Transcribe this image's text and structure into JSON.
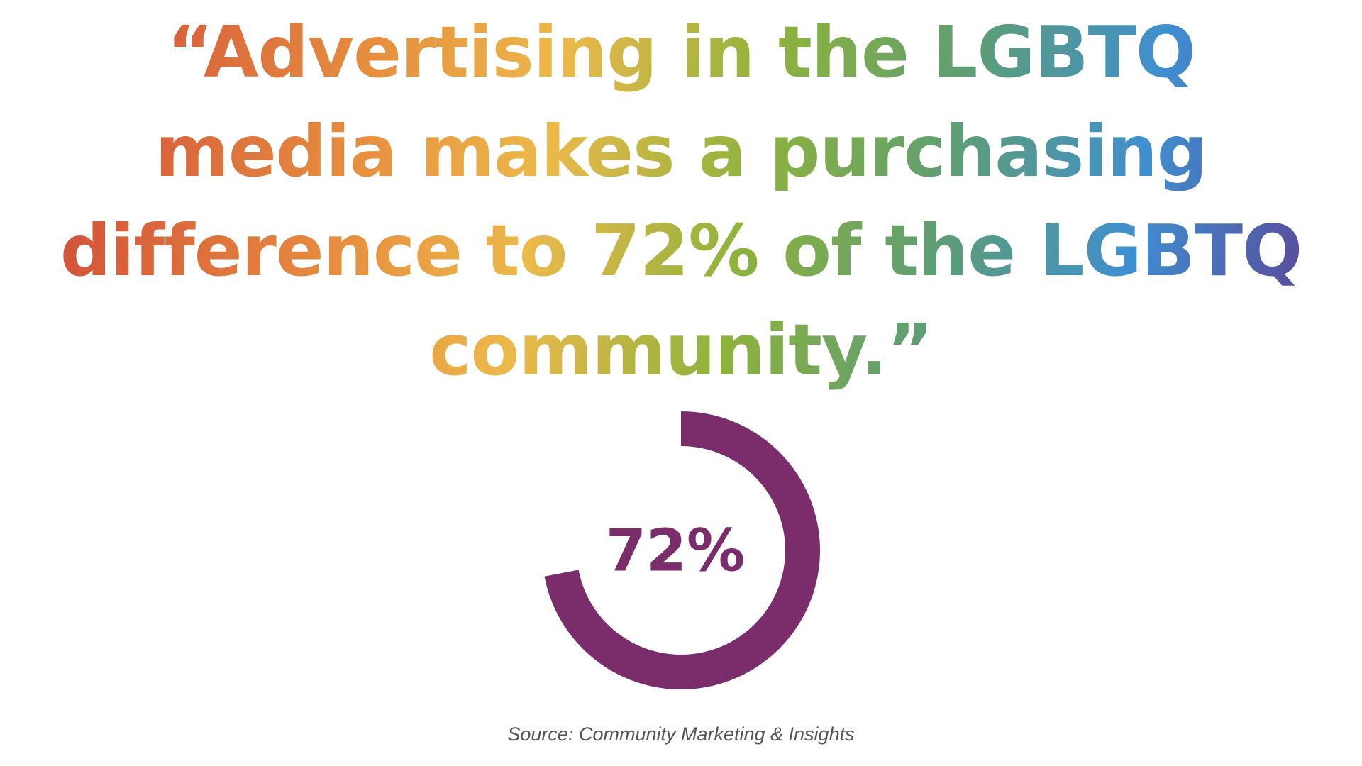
{
  "chart_data": {
    "type": "donut",
    "title": [
      "“Advertising in the LGBTQ",
      "media makes a purchasing",
      "difference to 72% of the LGBTQ",
      "community.”"
    ],
    "values": [
      72
    ],
    "value_labels": [
      "72%"
    ],
    "color": "#7b2d6b",
    "source": "Source: Community Marketing & Insights"
  }
}
